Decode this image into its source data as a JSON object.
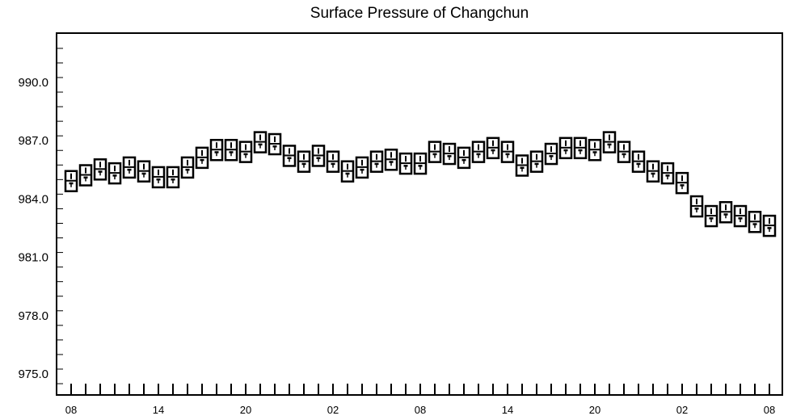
{
  "chart_data": {
    "type": "scatter",
    "title": "Surface Pressure of Changchun",
    "xlabel": "",
    "ylabel": "",
    "ylim": [
      974.5,
      992.5
    ],
    "yticks": [
      975.0,
      978.0,
      981.0,
      984.0,
      987.0,
      990.0
    ],
    "ytick_labels": [
      "975.0",
      "978.0",
      "981.0",
      "984.0",
      "987.0",
      "990.0"
    ],
    "x_count": 49,
    "xtick_labels": [
      {
        "index": 0,
        "label": "08"
      },
      {
        "index": 6,
        "label": "14"
      },
      {
        "index": 12,
        "label": "20"
      },
      {
        "index": 18,
        "label": "02"
      },
      {
        "index": 24,
        "label": "08"
      },
      {
        "index": 30,
        "label": "14"
      },
      {
        "index": 36,
        "label": "20"
      },
      {
        "index": 42,
        "label": "02"
      },
      {
        "index": 48,
        "label": "08"
      }
    ],
    "grid": false,
    "series": [
      {
        "values": [
          984.9,
          985.2,
          985.5,
          985.3,
          985.6,
          985.4,
          985.1,
          985.1,
          985.6,
          986.1,
          986.5,
          986.5,
          986.4,
          986.9,
          986.8,
          986.2,
          985.9,
          986.2,
          985.9,
          985.4,
          985.6,
          985.9,
          986.0,
          985.8,
          985.8,
          986.4,
          986.3,
          986.1,
          986.4,
          986.6,
          986.4,
          985.7,
          985.9,
          986.3,
          986.6,
          986.6,
          986.5,
          986.9,
          986.4,
          985.9,
          985.4,
          985.3,
          984.8,
          983.6,
          983.1,
          983.3,
          983.1,
          982.8,
          982.6
        ]
      }
    ]
  }
}
